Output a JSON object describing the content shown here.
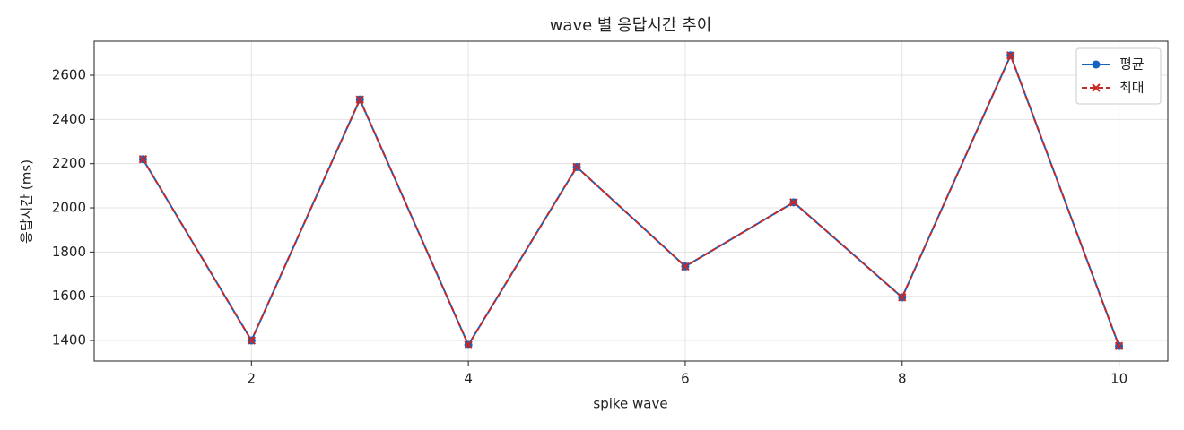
{
  "chart_data": {
    "type": "line",
    "title": "wave 별 응답시간 추이",
    "x_label": "spike wave",
    "y_label": "응답시간 (ms)",
    "x": [
      1,
      2,
      3,
      4,
      5,
      6,
      7,
      8,
      9,
      10
    ],
    "series": [
      {
        "name": "평균",
        "color": "#1565c0",
        "marker": "o",
        "linestyle": "solid",
        "values": [
          2220,
          1400,
          2490,
          1380,
          2185,
          1735,
          2025,
          1595,
          2690,
          1375
        ]
      },
      {
        "name": "최대",
        "color": "#c62828",
        "marker": "x",
        "linestyle": "dashed",
        "values": [
          2220,
          1400,
          2490,
          1380,
          2185,
          1735,
          2025,
          1595,
          2690,
          1375
        ]
      }
    ],
    "xlim": [
      0.55,
      10.45
    ],
    "xticks": [
      2,
      4,
      6,
      8,
      10
    ],
    "ylim": [
      1307,
      2754
    ],
    "yticks": [
      1400,
      1600,
      1800,
      2000,
      2200,
      2400,
      2600
    ],
    "grid": true,
    "legend": "upper right"
  }
}
